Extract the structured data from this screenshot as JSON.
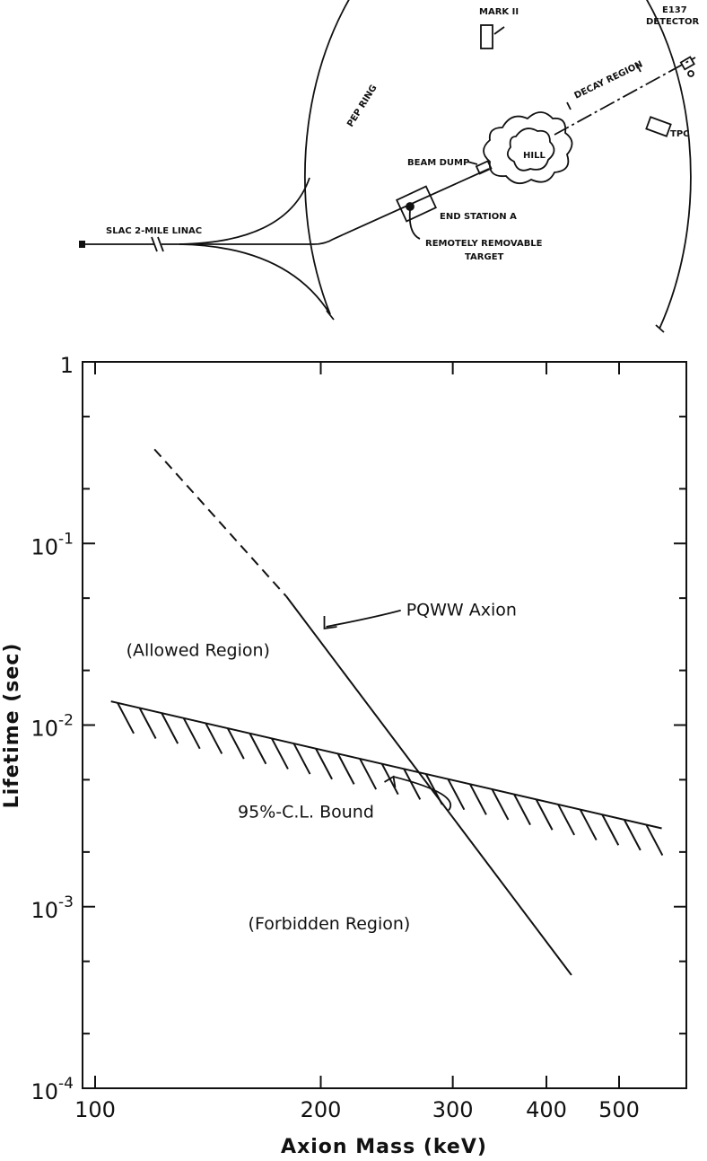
{
  "diagram": {
    "linac_label": "SLAC 2-MILE LINAC",
    "pep_ring_label": "PEP RING",
    "mark_label": "MARK II",
    "e137_label": "E137",
    "detector_label": "DETECTOR",
    "decay_region_label": "DECAY REGION",
    "tpc_label": "TPC",
    "hill_label": "HILL",
    "beam_dump_label": "BEAM DUMP",
    "end_station_label": "END STATION A",
    "target_label_line1": "REMOTELY REMOVABLE",
    "target_label_line2": "TARGET"
  },
  "chart_data": {
    "type": "line",
    "title": "",
    "xlabel": "Axion Mass (keV)",
    "ylabel": "Lifetime (sec)",
    "x_scale": "log",
    "y_scale": "log",
    "xlim": [
      100,
      600
    ],
    "ylim": [
      0.0001,
      1
    ],
    "x_ticks": [
      100,
      200,
      300,
      400,
      500
    ],
    "x_tick_labels": [
      "100",
      "200",
      "300",
      "400",
      "500"
    ],
    "y_ticks": [
      0.0001,
      0.001,
      0.01,
      0.1,
      1
    ],
    "y_tick_labels": [
      {
        "base": "10",
        "exp": "-4"
      },
      {
        "base": "10",
        "exp": "-3"
      },
      {
        "base": "10",
        "exp": "-2"
      },
      {
        "base": "10",
        "exp": "-1"
      },
      {
        "base": "1",
        "exp": ""
      }
    ],
    "series": [
      {
        "name": "PQWW Axion",
        "dashed_x": [
          120,
          180
        ],
        "dashed_y": [
          0.33,
          0.051
        ],
        "solid_x": [
          180,
          432
        ],
        "solid_y": [
          0.051,
          0.00042
        ]
      },
      {
        "name": "95%-C.L. Bound",
        "x": [
          105,
          570
        ],
        "y": [
          0.0135,
          0.0027
        ],
        "hatched_below": true
      }
    ],
    "annotations": [
      {
        "text": "PQWW Axion",
        "x": 260,
        "y": 0.04
      },
      {
        "text": "(Allowed Region)",
        "x": 110,
        "y": 0.024
      },
      {
        "text": "95%-C.L. Bound",
        "x": 155,
        "y": 0.0031
      },
      {
        "text": "(Forbidden Region)",
        "x": 160,
        "y": 0.00075
      }
    ],
    "grid": false
  }
}
